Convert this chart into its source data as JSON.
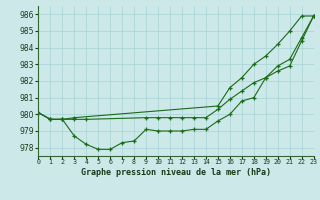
{
  "title": "Graphe pression niveau de la mer (hPa)",
  "bg_color": "#cce8e8",
  "grid_color": "#a8d4d4",
  "line_color": "#1a6b1a",
  "xlim": [
    0,
    23
  ],
  "ylim": [
    977.5,
    986.5
  ],
  "yticks": [
    978,
    979,
    980,
    981,
    982,
    983,
    984,
    985,
    986
  ],
  "hours": [
    0,
    1,
    2,
    3,
    4,
    5,
    6,
    7,
    8,
    9,
    10,
    11,
    12,
    13,
    14,
    15,
    16,
    17,
    18,
    19,
    20,
    21,
    22,
    23
  ],
  "line1_x": [
    0,
    1,
    2,
    3,
    4,
    5,
    6,
    7,
    8,
    9,
    10,
    11,
    12,
    13,
    14,
    15,
    16,
    17,
    18,
    19,
    20,
    21,
    22,
    23
  ],
  "line1_y": [
    980.1,
    979.7,
    979.7,
    978.7,
    978.2,
    977.9,
    977.9,
    978.3,
    978.4,
    979.1,
    979.0,
    979.0,
    979.0,
    979.1,
    979.1,
    979.6,
    980.0,
    980.8,
    981.0,
    982.2,
    982.9,
    983.3,
    984.6,
    985.9
  ],
  "line2_x": [
    0,
    1,
    2,
    3,
    4,
    9,
    10,
    11,
    12,
    13,
    14,
    15,
    16,
    17,
    18,
    19,
    20,
    21,
    22,
    23
  ],
  "line2_y": [
    980.1,
    979.7,
    979.7,
    979.7,
    979.7,
    979.8,
    979.8,
    979.8,
    979.8,
    979.8,
    979.8,
    980.3,
    980.9,
    981.4,
    981.9,
    982.2,
    982.6,
    982.9,
    984.4,
    985.9
  ],
  "line3_x": [
    0,
    1,
    2,
    3,
    15,
    16,
    17,
    18,
    19,
    20,
    21,
    22,
    23
  ],
  "line3_y": [
    980.1,
    979.7,
    979.7,
    979.8,
    980.5,
    981.6,
    982.2,
    983.0,
    983.5,
    984.2,
    985.0,
    985.9,
    985.9
  ]
}
